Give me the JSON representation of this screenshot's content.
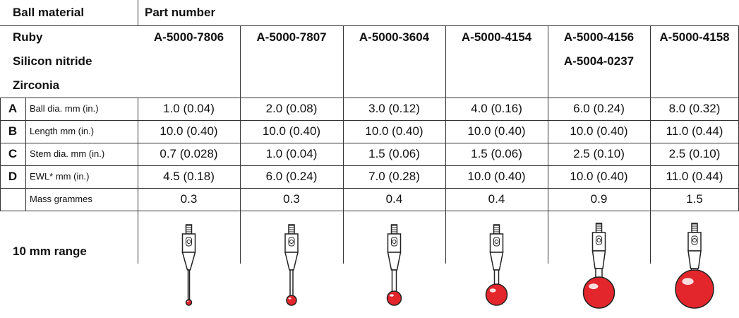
{
  "header": {
    "material_label": "Ball material",
    "part_label": "Part number"
  },
  "materials": [
    "Ruby",
    "Silicon nitride",
    "Zirconia"
  ],
  "part_numbers": [
    [
      "A-5000-7806"
    ],
    [
      "A-5000-7807"
    ],
    [
      "A-5000-3604"
    ],
    [
      "A-5000-4154"
    ],
    [
      "A-5000-4156",
      "A-5004-0237"
    ],
    [
      "A-5000-4158"
    ]
  ],
  "rows": [
    {
      "letter": "A",
      "label": "Ball dia. mm (in.)",
      "values": [
        "1.0 (0.04)",
        "2.0 (0.08)",
        "3.0 (0.12)",
        "4.0 (0.16)",
        "6.0 (0.24)",
        "8.0 (0.32)"
      ]
    },
    {
      "letter": "B",
      "label": "Length mm (in.)",
      "values": [
        "10.0 (0.40)",
        "10.0 (0.40)",
        "10.0 (0.40)",
        "10.0 (0.40)",
        "10.0 (0.40)",
        "11.0 (0.44)"
      ]
    },
    {
      "letter": "C",
      "label": "Stem dia. mm (in.)",
      "values": [
        "0.7 (0.028)",
        "1.0 (0.04)",
        "1.5 (0.06)",
        "1.5 (0.06)",
        "2.5 (0.10)",
        "2.5 (0.10)"
      ]
    },
    {
      "letter": "D",
      "label": "EWL* mm (in.)",
      "values": [
        "4.5 (0.18)",
        "6.0 (0.24)",
        "7.0 (0.28)",
        "10.0 (0.40)",
        "10.0 (0.40)",
        "11.0 (0.44)"
      ]
    },
    {
      "label": "Mass grammes",
      "values": [
        "0.3",
        "0.3",
        "0.4",
        "0.4",
        "0.9",
        "1.5"
      ]
    }
  ],
  "range_label": "10 mm range"
}
